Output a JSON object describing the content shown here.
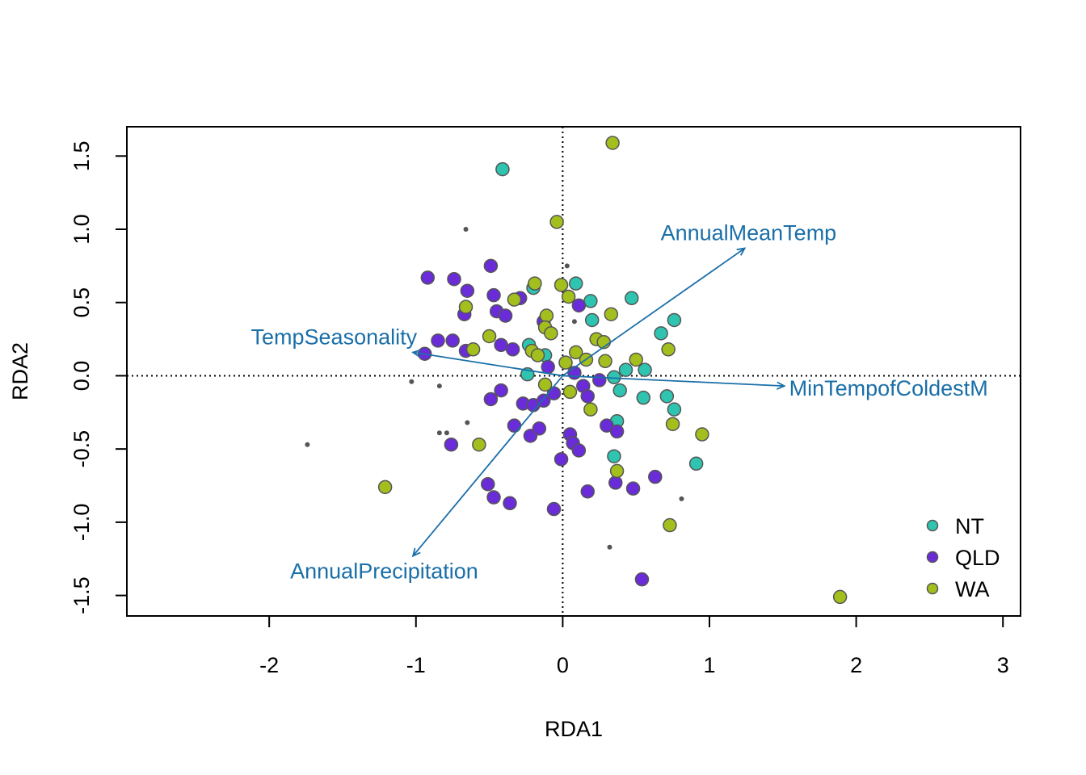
{
  "chart_data": {
    "type": "scatter",
    "title": "",
    "xlabel": "RDA1",
    "ylabel": "RDA2",
    "xlim": [
      -2.97,
      3.12
    ],
    "ylim": [
      -1.64,
      1.7
    ],
    "xticks": [
      "-2",
      "-1",
      "0",
      "1",
      "2",
      "3"
    ],
    "yticks": [
      "-1.5",
      "-1.0",
      "-0.5",
      "0.0",
      "0.5",
      "1.0",
      "1.5"
    ],
    "xtick_values": [
      -2,
      -1,
      0,
      1,
      2,
      3
    ],
    "ytick_values": [
      -1.5,
      -1.0,
      -0.5,
      0.0,
      0.5,
      1.0,
      1.5
    ],
    "reference_lines": {
      "x": 0,
      "y": 0,
      "style": "dotted"
    },
    "colors": {
      "NT": "#2EC4B0",
      "QLD": "#6A2CD8",
      "WA": "#A3BF1E",
      "arrow": "#1A6FA8",
      "species": "#555555"
    },
    "legend": {
      "position": "bottom-right",
      "entries": [
        {
          "label": "NT",
          "color": "#2EC4B0"
        },
        {
          "label": "QLD",
          "color": "#6A2CD8"
        },
        {
          "label": "WA",
          "color": "#A3BF1E"
        }
      ]
    },
    "biplot_arrows": [
      {
        "label": "AnnualMeanTemp",
        "x": 1.24,
        "y": 0.87
      },
      {
        "label": "TempSeasonality",
        "x": -1.02,
        "y": 0.16
      },
      {
        "label": "MinTempofColdestM",
        "x": 1.51,
        "y": -0.07
      },
      {
        "label": "AnnualPrecipitation",
        "x": -1.02,
        "y": -1.23
      }
    ],
    "species_points": [
      [
        -0.66,
        1.0
      ],
      [
        0.03,
        0.75
      ],
      [
        0.08,
        0.37
      ],
      [
        -1.03,
        -0.04
      ],
      [
        -0.84,
        -0.07
      ],
      [
        -0.65,
        -0.32
      ],
      [
        -0.84,
        -0.39
      ],
      [
        -0.79,
        -0.39
      ],
      [
        -1.74,
        -0.47
      ],
      [
        0.81,
        -0.84
      ],
      [
        0.32,
        -1.17
      ]
    ],
    "series": [
      {
        "name": "NT",
        "color": "#2EC4B0",
        "points": [
          [
            -0.41,
            1.41
          ],
          [
            0.09,
            0.63
          ],
          [
            0.19,
            0.51
          ],
          [
            0.2,
            0.38
          ],
          [
            0.47,
            0.53
          ],
          [
            0.76,
            0.38
          ],
          [
            0.67,
            0.29
          ],
          [
            -0.2,
            0.6
          ],
          [
            -0.23,
            0.21
          ],
          [
            -0.12,
            0.14
          ],
          [
            0.56,
            0.04
          ],
          [
            0.43,
            0.04
          ],
          [
            0.35,
            -0.01
          ],
          [
            -0.24,
            0.01
          ],
          [
            0.39,
            -0.1
          ],
          [
            0.55,
            -0.15
          ],
          [
            0.71,
            -0.14
          ],
          [
            0.76,
            -0.23
          ],
          [
            0.37,
            -0.31
          ],
          [
            0.35,
            -0.55
          ],
          [
            0.91,
            -0.6
          ]
        ]
      },
      {
        "name": "QLD",
        "color": "#6A2CD8",
        "points": [
          [
            -0.92,
            0.67
          ],
          [
            -0.74,
            0.66
          ],
          [
            -0.49,
            0.75
          ],
          [
            -0.65,
            0.58
          ],
          [
            -0.47,
            0.55
          ],
          [
            -0.67,
            0.42
          ],
          [
            -0.45,
            0.44
          ],
          [
            -0.39,
            0.41
          ],
          [
            -0.29,
            0.53
          ],
          [
            -0.13,
            0.37
          ],
          [
            0.11,
            0.48
          ],
          [
            -0.85,
            0.24
          ],
          [
            -0.75,
            0.24
          ],
          [
            -0.94,
            0.15
          ],
          [
            -0.66,
            0.17
          ],
          [
            -0.42,
            0.21
          ],
          [
            -0.34,
            0.18
          ],
          [
            -0.1,
            0.06
          ],
          [
            0.08,
            0.02
          ],
          [
            0.25,
            -0.03
          ],
          [
            -0.42,
            -0.1
          ],
          [
            -0.49,
            -0.16
          ],
          [
            -0.27,
            -0.19
          ],
          [
            -0.2,
            -0.2
          ],
          [
            -0.13,
            -0.17
          ],
          [
            -0.06,
            -0.12
          ],
          [
            0.14,
            -0.07
          ],
          [
            0.17,
            -0.14
          ],
          [
            0.3,
            -0.34
          ],
          [
            -0.33,
            -0.34
          ],
          [
            -0.22,
            -0.41
          ],
          [
            -0.16,
            -0.36
          ],
          [
            0.05,
            -0.4
          ],
          [
            0.07,
            -0.46
          ],
          [
            0.11,
            -0.51
          ],
          [
            -0.76,
            -0.47
          ],
          [
            -0.01,
            -0.57
          ],
          [
            0.17,
            -0.79
          ],
          [
            0.37,
            -0.38
          ],
          [
            0.36,
            -0.73
          ],
          [
            0.48,
            -0.77
          ],
          [
            0.63,
            -0.69
          ],
          [
            -0.51,
            -0.74
          ],
          [
            -0.47,
            -0.83
          ],
          [
            -0.36,
            -0.87
          ],
          [
            -0.06,
            -0.91
          ],
          [
            0.54,
            -1.39
          ]
        ]
      },
      {
        "name": "WA",
        "color": "#A3BF1E",
        "points": [
          [
            0.34,
            1.59
          ],
          [
            -0.04,
            1.05
          ],
          [
            -0.19,
            0.63
          ],
          [
            -0.01,
            0.62
          ],
          [
            0.04,
            0.54
          ],
          [
            -0.33,
            0.52
          ],
          [
            -0.66,
            0.47
          ],
          [
            -0.11,
            0.41
          ],
          [
            0.33,
            0.42
          ],
          [
            -0.12,
            0.33
          ],
          [
            -0.08,
            0.29
          ],
          [
            -0.5,
            0.27
          ],
          [
            0.23,
            0.25
          ],
          [
            0.28,
            0.23
          ],
          [
            -0.61,
            0.18
          ],
          [
            -0.21,
            0.17
          ],
          [
            -0.17,
            0.14
          ],
          [
            0.09,
            0.16
          ],
          [
            0.02,
            0.09
          ],
          [
            0.29,
            0.1
          ],
          [
            0.16,
            0.11
          ],
          [
            0.5,
            0.11
          ],
          [
            0.72,
            0.18
          ],
          [
            -0.12,
            -0.06
          ],
          [
            0.05,
            -0.11
          ],
          [
            0.19,
            -0.23
          ],
          [
            0.75,
            -0.33
          ],
          [
            0.95,
            -0.4
          ],
          [
            -0.57,
            -0.47
          ],
          [
            0.37,
            -0.65
          ],
          [
            -1.21,
            -0.76
          ],
          [
            0.73,
            -1.02
          ],
          [
            1.89,
            -1.51
          ]
        ]
      }
    ]
  }
}
